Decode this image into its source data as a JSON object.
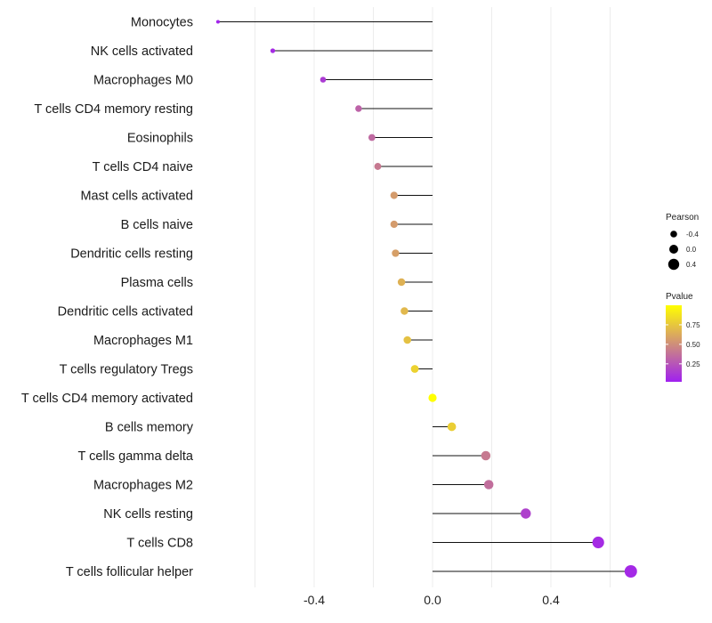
{
  "chart_data": {
    "type": "lollipop",
    "title": "",
    "xlabel": "",
    "ylabel": "",
    "xlim": [
      -0.73,
      0.73
    ],
    "xticks": [
      -0.4,
      0.0,
      0.4
    ],
    "xtick_labels": [
      "-0.4",
      "0.0",
      "0.4"
    ],
    "grid_minor": [
      -0.6,
      -0.2,
      0.2,
      0.6
    ],
    "categories": [
      "Monocytes",
      "NK cells activated",
      "Macrophages M0",
      "T cells CD4 memory resting",
      "Eosinophils",
      "T cells CD4 naive",
      "Mast cells activated",
      "B cells naive",
      "Dendritic cells resting",
      "Plasma cells",
      "Dendritic cells activated",
      "Macrophages M1",
      "T cells regulatory  Tregs ",
      "T cells CD4 memory activated",
      "B cells memory",
      "T cells gamma delta",
      "Macrophages M2",
      "NK cells resting",
      "T cells CD8",
      "T cells follicular helper"
    ],
    "values": [
      -0.725,
      -0.54,
      -0.37,
      -0.25,
      -0.205,
      -0.185,
      -0.13,
      -0.13,
      -0.125,
      -0.105,
      -0.095,
      -0.085,
      -0.06,
      0.0,
      0.065,
      0.18,
      0.19,
      0.315,
      0.56,
      0.67
    ],
    "pvalues": [
      0.02,
      0.05,
      0.12,
      0.3,
      0.33,
      0.4,
      0.55,
      0.55,
      0.57,
      0.65,
      0.68,
      0.72,
      0.8,
      1.0,
      0.78,
      0.4,
      0.35,
      0.15,
      0.05,
      0.04
    ],
    "legend": {
      "size_title": "Pearson",
      "size_entries": [
        {
          "label": "-0.4",
          "value": -0.4
        },
        {
          "label": "0.0",
          "value": 0.0
        },
        {
          "label": "0.4",
          "value": 0.4
        }
      ],
      "color_title": "Pvalue",
      "color_ticks": [
        {
          "label": "0.75",
          "value": 0.75
        },
        {
          "label": "0.50",
          "value": 0.5
        },
        {
          "label": "0.25",
          "value": 0.25
        }
      ],
      "color_low": "#a020f0",
      "color_high": "#ffff00",
      "placement": "right"
    }
  }
}
